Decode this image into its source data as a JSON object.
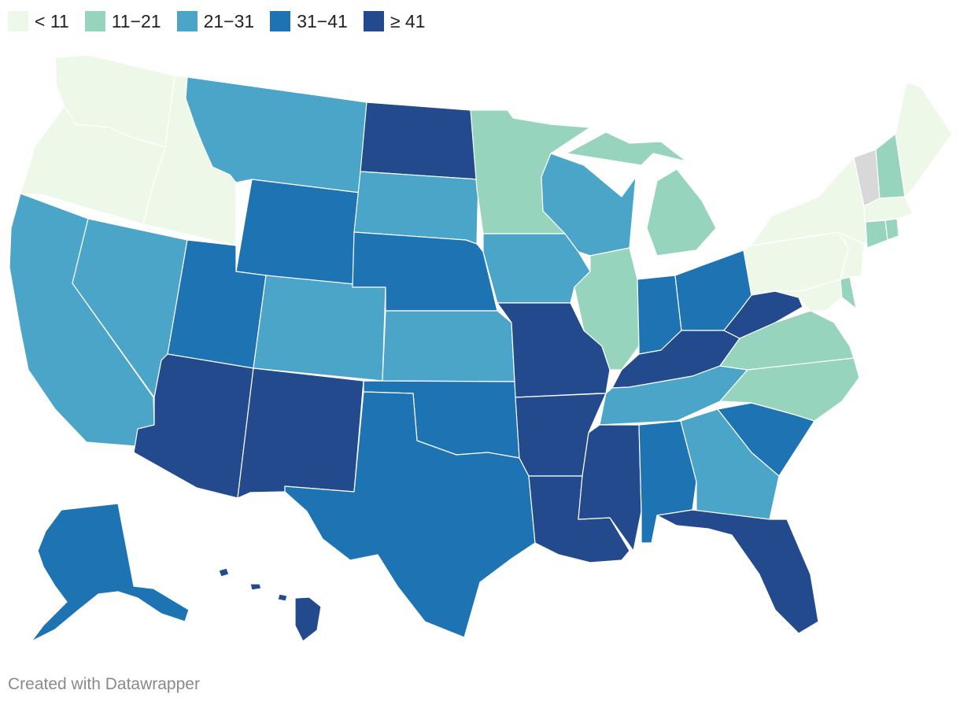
{
  "legend": {
    "items": [
      {
        "label": "< 11",
        "color": "#eef8e8"
      },
      {
        "label": "11−21",
        "color": "#97d4bd"
      },
      {
        "label": "21−31",
        "color": "#4aa5c8"
      },
      {
        "label": "31−41",
        "color": "#1e74b3"
      },
      {
        "label": "≥ 41",
        "color": "#234a8c"
      }
    ]
  },
  "no_data_color": "#d8d8d8",
  "states": [
    {
      "name": "Washington",
      "bin": 0
    },
    {
      "name": "Oregon",
      "bin": 0
    },
    {
      "name": "Idaho",
      "bin": 0
    },
    {
      "name": "Maine",
      "bin": 0
    },
    {
      "name": "New York",
      "bin": 0
    },
    {
      "name": "Pennsylvania",
      "bin": 0
    },
    {
      "name": "Massachusetts",
      "bin": 0
    },
    {
      "name": "New Jersey",
      "bin": 0
    },
    {
      "name": "Maryland",
      "bin": 0
    },
    {
      "name": "Minnesota",
      "bin": 1
    },
    {
      "name": "Michigan",
      "bin": 1
    },
    {
      "name": "Illinois",
      "bin": 1
    },
    {
      "name": "Virginia",
      "bin": 1
    },
    {
      "name": "North Carolina",
      "bin": 1
    },
    {
      "name": "New Hampshire",
      "bin": 1
    },
    {
      "name": "Connecticut",
      "bin": 1
    },
    {
      "name": "Rhode Island",
      "bin": 1
    },
    {
      "name": "Delaware",
      "bin": 1
    },
    {
      "name": "Montana",
      "bin": 2
    },
    {
      "name": "California",
      "bin": 2
    },
    {
      "name": "Nevada",
      "bin": 2
    },
    {
      "name": "Colorado",
      "bin": 2
    },
    {
      "name": "South Dakota",
      "bin": 2
    },
    {
      "name": "Kansas",
      "bin": 2
    },
    {
      "name": "Iowa",
      "bin": 2
    },
    {
      "name": "Wisconsin",
      "bin": 2
    },
    {
      "name": "Tennessee",
      "bin": 2
    },
    {
      "name": "Georgia",
      "bin": 2
    },
    {
      "name": "Wyoming",
      "bin": 3
    },
    {
      "name": "Utah",
      "bin": 3
    },
    {
      "name": "Nebraska",
      "bin": 3
    },
    {
      "name": "Texas",
      "bin": 3
    },
    {
      "name": "Oklahoma",
      "bin": 3
    },
    {
      "name": "Indiana",
      "bin": 3
    },
    {
      "name": "Ohio",
      "bin": 3
    },
    {
      "name": "South Carolina",
      "bin": 3
    },
    {
      "name": "Alabama",
      "bin": 3
    },
    {
      "name": "Alaska",
      "bin": 3
    },
    {
      "name": "North Dakota",
      "bin": 4
    },
    {
      "name": "Arizona",
      "bin": 4
    },
    {
      "name": "New Mexico",
      "bin": 4
    },
    {
      "name": "Missouri",
      "bin": 4
    },
    {
      "name": "Arkansas",
      "bin": 4
    },
    {
      "name": "Louisiana",
      "bin": 4
    },
    {
      "name": "Mississippi",
      "bin": 4
    },
    {
      "name": "Kentucky",
      "bin": 4
    },
    {
      "name": "West Virginia",
      "bin": 4
    },
    {
      "name": "Florida",
      "bin": 4
    },
    {
      "name": "Hawaii",
      "bin": 4
    },
    {
      "name": "Vermont",
      "bin": null
    }
  ],
  "footer": {
    "credit": "Created with Datawrapper"
  }
}
